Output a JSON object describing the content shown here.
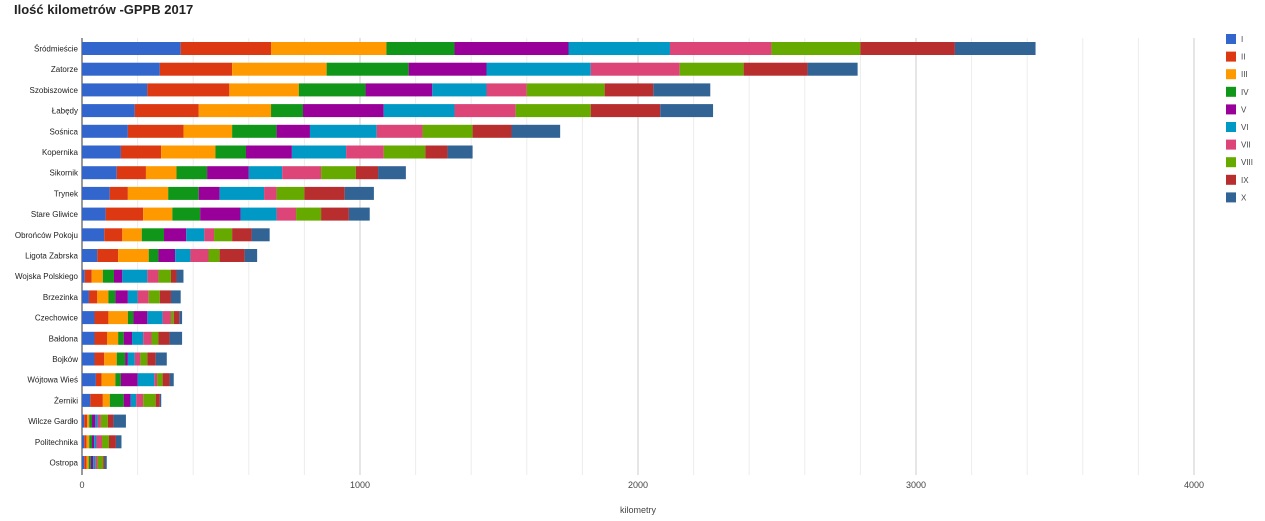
{
  "chart_data": {
    "type": "bar",
    "orientation": "horizontal",
    "stacked": true,
    "title": "Ilość  kilometrów -GPPB 2017",
    "xlabel": "kilometry",
    "ylabel": "",
    "xlim": [
      0,
      4000
    ],
    "xticks": [
      "0",
      "1000",
      "2000",
      "3000",
      "4000"
    ],
    "grid": true,
    "legend_position": "right",
    "categories": [
      "Śródmieście",
      "Zatorze",
      "Szobiszowice",
      "Łabędy",
      "Sośnica",
      "Kopernika",
      "Sikornik",
      "Trynek",
      "Stare Gliwice",
      "Obrońców Pokoju",
      "Ligota Zabrska",
      "Wojska Polskiego",
      "Brzezinka",
      "Czechowice",
      "Bałdona",
      "Bojków",
      "Wójtowa Wieś",
      "Żerniki",
      "Wilcze Gardło",
      "Politechnika",
      "Ostropa"
    ],
    "series": [
      {
        "name": "I",
        "color": "#3366cc",
        "values": [
          355,
          280,
          235,
          190,
          165,
          140,
          125,
          100,
          85,
          80,
          55,
          10,
          25,
          45,
          45,
          45,
          50,
          30,
          8,
          8,
          8
        ]
      },
      {
        "name": "II",
        "color": "#dc3912",
        "values": [
          325,
          260,
          295,
          230,
          200,
          145,
          105,
          65,
          135,
          65,
          75,
          25,
          30,
          50,
          45,
          35,
          20,
          45,
          10,
          8,
          8
        ]
      },
      {
        "name": "III",
        "color": "#ff9900",
        "values": [
          415,
          340,
          250,
          260,
          175,
          195,
          110,
          145,
          105,
          70,
          110,
          40,
          40,
          70,
          40,
          45,
          50,
          25,
          8,
          10,
          8
        ]
      },
      {
        "name": "IV",
        "color": "#109618",
        "values": [
          245,
          295,
          240,
          115,
          160,
          110,
          110,
          110,
          100,
          80,
          35,
          40,
          25,
          20,
          20,
          30,
          20,
          50,
          10,
          10,
          8
        ]
      },
      {
        "name": "V",
        "color": "#990099",
        "values": [
          410,
          280,
          240,
          290,
          120,
          165,
          150,
          75,
          145,
          80,
          60,
          30,
          45,
          50,
          30,
          10,
          60,
          25,
          12,
          8,
          8
        ]
      },
      {
        "name": "VI",
        "color": "#0099c6",
        "values": [
          365,
          375,
          195,
          255,
          240,
          195,
          120,
          160,
          130,
          65,
          55,
          90,
          35,
          55,
          40,
          25,
          60,
          20,
          8,
          8,
          8
        ]
      },
      {
        "name": "VII",
        "color": "#dd4477",
        "values": [
          365,
          320,
          145,
          220,
          165,
          135,
          140,
          45,
          70,
          35,
          65,
          40,
          40,
          30,
          30,
          20,
          10,
          25,
          12,
          20,
          8
        ]
      },
      {
        "name": "VIII",
        "color": "#66aa00",
        "values": [
          320,
          230,
          280,
          270,
          180,
          150,
          125,
          100,
          90,
          65,
          40,
          45,
          40,
          10,
          25,
          25,
          20,
          45,
          25,
          25,
          20
        ]
      },
      {
        "name": "IX",
        "color": "#b82e2e",
        "values": [
          340,
          230,
          175,
          250,
          140,
          80,
          80,
          145,
          100,
          70,
          90,
          20,
          40,
          20,
          40,
          30,
          25,
          15,
          20,
          25,
          5
        ]
      },
      {
        "name": "X",
        "color": "#316395",
        "values": [
          290,
          180,
          205,
          190,
          175,
          90,
          100,
          105,
          75,
          65,
          45,
          25,
          35,
          10,
          45,
          40,
          15,
          5,
          45,
          20,
          8
        ]
      }
    ]
  }
}
